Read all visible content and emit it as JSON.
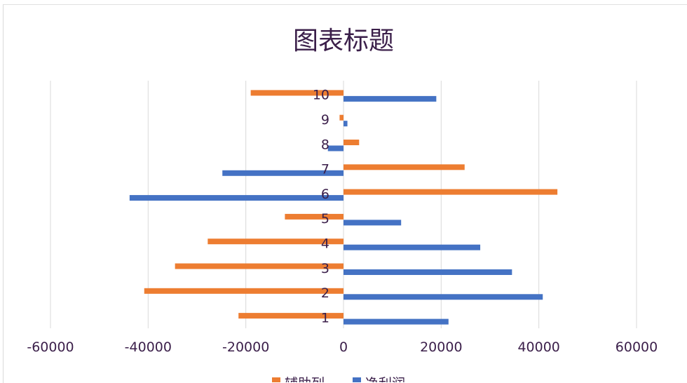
{
  "chart_data": {
    "type": "bar",
    "orientation": "horizontal",
    "title": "图表标题",
    "categories": [
      "1",
      "2",
      "3",
      "4",
      "5",
      "6",
      "7",
      "8",
      "9",
      "10"
    ],
    "series": [
      {
        "name": "辅助列",
        "color": "#ED7D31",
        "values": [
          -21500,
          -40800,
          -34500,
          -27800,
          -12000,
          43800,
          24800,
          3200,
          -800,
          -19000
        ]
      },
      {
        "name": "净利润",
        "color": "#4472C4",
        "values": [
          21500,
          40800,
          34500,
          28000,
          11800,
          -43800,
          -24800,
          -3200,
          800,
          19000
        ]
      }
    ],
    "xlim": [
      -60000,
      60000
    ],
    "xticks": [
      "-60000",
      "-40000",
      "-20000",
      "0",
      "20000",
      "40000",
      "60000"
    ],
    "grid": true,
    "legend_position": "bottom"
  }
}
